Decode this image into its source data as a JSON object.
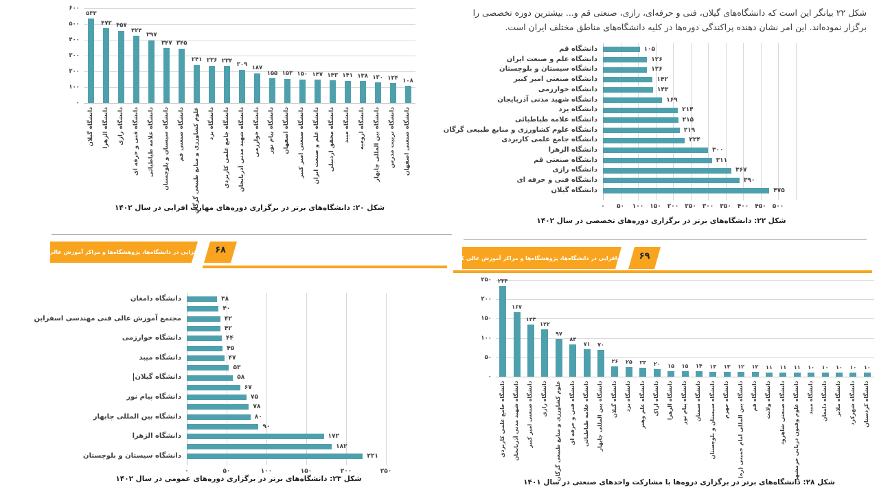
{
  "banner": {
    "title": "مهارت‌افزایی در دانشگاه‌ها، پژوهشگاه‌ها و مراکز آموزش عالی کشور",
    "left_page_number": "۶۸",
    "right_page_number": "۶۹",
    "bar_color": "#F9A41F",
    "number_color": "#262626"
  },
  "intro": {
    "line1": "شکل ۲۲ بیانگر این است که دانشگاه‌های گیلان، فنی و حرفه‌ای، رازی، صنعتی قم و... بیشترین دوره تخصصی را",
    "line2": "برگزار نموده‌اند. این امر نشان دهنده پراکندگی دوره‌ها در کلیه دانشگاه‌های مناطق مختلف ایران است."
  },
  "colors": {
    "bar": "#4FA0AD",
    "grid": "#D8D8D8",
    "baseline": "#BFBFBF",
    "axis_text": "#404040",
    "caption_text": "#1F1F1F"
  },
  "chart_data": [
    {
      "id": "fig20",
      "type": "bar",
      "orientation": "vertical",
      "title": "شکل ۲۰: دانشگاه‌های برتر در برگزاری دوره‌های مهارت افزایی در سال ۱۴۰۲",
      "categories": [
        "دانشگاه گیلان",
        "دانشگاه الزهرا",
        "دانشگاه رازی",
        "دانشگاه فنی و حرفه ای",
        "دانشگاه علامه طباطبائی",
        "دانشگاه سیستان و بلوچستان",
        "دانشگاه صنعتی قم",
        "علوم کشاورزی و منابع طبیعی گرگان",
        "دانشگاه یزد",
        "دانشگاه جامع علمی کاربردی",
        "دانشگاه شهید مدنی آذربایجان",
        "دانشگاه خوارزمی",
        "دانشگاه پیام نور",
        "دانشگاه اصفهان",
        "دانشگاه صنعتی امیر کبیر",
        "دانشگاه علم و صنعت ایران",
        "دانشگاه محقق اردبیلی",
        "دانشگاه میبد",
        "دانشگاه ارومیه",
        "دانشگاه بین المللی چابهار",
        "دانشگاه تربیت مدرس",
        "دانشگاه صنعتی اصفهان"
      ],
      "values": [
        533,
        472,
        457,
        424,
        397,
        347,
        345,
        241,
        236,
        234,
        209,
        187,
        155,
        153,
        150,
        147,
        143,
        141,
        138,
        130,
        124,
        108
      ],
      "ylim": [
        0,
        600
      ],
      "ytick_step": 100,
      "grid": true,
      "number_locale": "fa"
    },
    {
      "id": "fig22",
      "type": "bar",
      "orientation": "horizontal",
      "title": "شکل ۲۲: دانشگاه‌های برتر در برگزاری دوره‌های تخصصی در سال ۱۴۰۲",
      "categories": [
        "دانشگاه قم",
        "دانشگاه علم و صنعت ایران",
        "دانشگاه سیستان و بلوچستان",
        "دانشگاه صنعتی امیر کبیر",
        "دانشگاه خوارزمی",
        "دانشگاه شهید مدنی آذربایجان",
        "دانشگاه یزد",
        "دانشگاه علامه طباطبائی",
        "دانشگاه علوم کشاورزی و منابع طبیعی گرگان",
        "دانشگاه جامع علمی کاربردی",
        "دانشگاه الزهرا",
        "دانشگاه صنعتی قم",
        "دانشگاه رازی",
        "دانشگاه فنی و حرفه ای",
        "دانشگاه گیلان"
      ],
      "values": [
        105,
        126,
        126,
        142,
        143,
        169,
        214,
        215,
        219,
        234,
        300,
        311,
        367,
        390,
        475
      ],
      "xlim": [
        0,
        550
      ],
      "xtick_step": 50,
      "xtick_max": 500,
      "grid": true,
      "number_locale": "fa"
    },
    {
      "id": "fig23",
      "type": "bar",
      "orientation": "horizontal",
      "title": "شکل ۲۳: دانشگاه‌های برتر در برگزاری دوره‌های عمومی در سال ۱۴۰۲",
      "categories": [
        "دانشگاه دامغان",
        "",
        "مجتمع آموزش عالی فنی مهندسی اسفراین",
        "",
        "دانشگاه خوارزمی",
        "",
        "دانشگاه میبد",
        "",
        "دانشگاه گیلان",
        "",
        "دانشگاه پیام نور",
        "",
        "دانشگاه بین المللی چابهار",
        "",
        "دانشگاه الزهرا",
        "",
        "دانشگاه سیستان و بلوچستان"
      ],
      "values": [
        38,
        40,
        42,
        42,
        44,
        45,
        47,
        53,
        58,
        67,
        75,
        78,
        80,
        90,
        172,
        182,
        221
      ],
      "xlim": [
        0,
        250
      ],
      "xtick_step": 50,
      "xtick_max": 250,
      "cursor_row_index": 8,
      "grid": true,
      "number_locale": "fa"
    },
    {
      "id": "fig28",
      "type": "bar",
      "orientation": "vertical",
      "title": "شکل ۲۸: دانشگاه‌های برتر در برگزاری دروه‌ها با مشارکت واحدهای صنعتی در سال ۱۴۰۱",
      "categories": [
        "دانشگاه جامع علمی کاربردی",
        "دانشگاه شهید مدنی آذربایجان",
        "دانشگاه صنعتی امیر کبیر",
        "دانشگاه رازی",
        "علوم کشاورزی و منابع طبیعی گرگان",
        "دانشگاه فنی و حرفه ای",
        "دانشگاه علامه طباطبائی",
        "دانشگاه بین المللی چابهار",
        "دانشگاه گیلان",
        "دانشگاه یزد",
        "دانشگاه علم وهنر",
        "دانشگاه اراک",
        "دانشگاه الزهرا",
        "دانشگاه پیام نور",
        "دانشگاه سمنان",
        "دانشگاه سیستان و بلوچستان",
        "دانشگاه جهرم",
        "دانشگاه بین المللی امام خمینی (ره)",
        "دانشگاه قم",
        "دانشگاه ولایت",
        "دانشگاه صنعتی شاهرود",
        "دانشگاه علوم وفنون دریایی خرمشهر",
        "دانشگاه میبد",
        "دانشگاه دامغان",
        "دانشگاه ملایر",
        "دانشگاه شهرکرد",
        "دانشگاه کردستان"
      ],
      "values": [
        234,
        167,
        134,
        122,
        97,
        83,
        71,
        70,
        26,
        25,
        23,
        20,
        15,
        15,
        14,
        13,
        13,
        12,
        12,
        11,
        11,
        11,
        10,
        10,
        10,
        10,
        10
      ],
      "ylim": [
        0,
        250
      ],
      "ytick_step": 50,
      "grid": true,
      "number_locale": "fa"
    }
  ]
}
